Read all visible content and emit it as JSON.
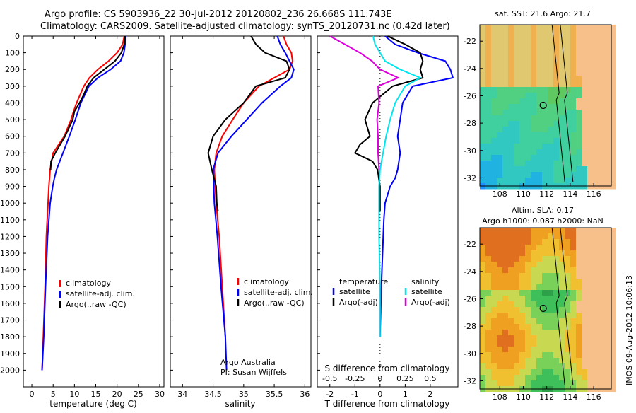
{
  "header": {
    "line1": "Argo profile: CS 5903936_22 30-Jul-2012 20120802_236 26.668S 111.743E",
    "line2": "Climatology: CARS2009. Satellite-adjusted climatology: synTS_20120731.nc (0.42d later)"
  },
  "colors": {
    "climatology": "#ff0000",
    "satellite": "#0000ff",
    "argo": "#000000",
    "sat_salinity": "#00e5ee",
    "argo_salinity": "#dd00dd"
  },
  "chart_data": [
    {
      "type": "line",
      "panel": "temperature",
      "xlabel": "temperature (deg C)",
      "ylabel": "",
      "xlim": [
        -2,
        31
      ],
      "ylim": [
        0,
        2100
      ],
      "y_reversed": true,
      "xticks": [
        0,
        5,
        10,
        15,
        20,
        25,
        30
      ],
      "yticks": [
        0,
        100,
        200,
        300,
        400,
        500,
        600,
        700,
        800,
        900,
        1000,
        1100,
        1200,
        1300,
        1400,
        1500,
        1600,
        1700,
        1800,
        1900,
        2000
      ],
      "legend": [
        "climatology",
        "satellite-adj. clim.",
        "Argo(..raw -QC)"
      ],
      "series": [
        {
          "name": "climatology",
          "color": "red",
          "depth": [
            0,
            50,
            100,
            150,
            200,
            250,
            300,
            400,
            450,
            500,
            600,
            700,
            800,
            900,
            1000,
            1200,
            1500,
            1800,
            2000
          ],
          "values": [
            21.7,
            21.3,
            20.0,
            18.0,
            15.5,
            13.5,
            12.2,
            10.5,
            9.8,
            9.2,
            7.6,
            5.0,
            4.3,
            4.0,
            3.8,
            3.4,
            3.1,
            2.7,
            2.4
          ]
        },
        {
          "name": "satellite-adj. clim.",
          "color": "blue",
          "depth": [
            0,
            50,
            100,
            150,
            200,
            250,
            300,
            400,
            500,
            600,
            700,
            800,
            850,
            900,
            1000,
            1200,
            1500,
            1800,
            2000
          ],
          "values": [
            22.0,
            21.9,
            21.6,
            20.8,
            18.5,
            15.5,
            13.4,
            11.5,
            10.2,
            8.8,
            7.3,
            5.8,
            5.3,
            4.9,
            4.3,
            3.7,
            3.2,
            2.8,
            2.4
          ]
        },
        {
          "name": "Argo(..raw -QC)",
          "color": "black",
          "depth": [
            0,
            50,
            100,
            150,
            200,
            250,
            300,
            350,
            400,
            450,
            500,
            600,
            700,
            750,
            800
          ],
          "values": [
            21.9,
            21.7,
            21.0,
            19.5,
            17.0,
            14.5,
            13.0,
            12.2,
            11.2,
            10.0,
            9.6,
            7.8,
            5.5,
            4.5,
            4.4
          ]
        }
      ]
    },
    {
      "type": "line",
      "panel": "salinity",
      "xlabel": "salinity",
      "xlim": [
        33.8,
        36.1
      ],
      "ylim": [
        0,
        2100
      ],
      "y_reversed": true,
      "xticks": [
        34,
        34.5,
        35,
        35.5,
        36
      ],
      "legend": [
        "climatology",
        "satellite-adj. clim.",
        "Argo(..raw -QC)"
      ],
      "annotations": [
        "Argo Australia",
        "PI: Susan Wijffels"
      ],
      "series": [
        {
          "name": "climatology",
          "color": "red",
          "depth": [
            0,
            50,
            100,
            150,
            200,
            250,
            300,
            400,
            500,
            600,
            700,
            800,
            1000,
            1200,
            1500,
            1800
          ],
          "values": [
            35.65,
            35.7,
            35.78,
            35.8,
            35.75,
            35.5,
            35.25,
            35.0,
            34.82,
            34.65,
            34.55,
            34.52,
            34.55,
            34.6,
            34.65,
            34.7
          ]
        },
        {
          "name": "satellite-adj. clim.",
          "color": "blue",
          "depth": [
            0,
            50,
            100,
            150,
            200,
            250,
            300,
            400,
            500,
            600,
            700,
            800,
            1000,
            1200,
            1500,
            1800,
            2000
          ],
          "values": [
            35.55,
            35.6,
            35.68,
            35.75,
            35.82,
            35.78,
            35.6,
            35.3,
            35.05,
            34.8,
            34.58,
            34.5,
            34.52,
            34.57,
            34.63,
            34.7,
            34.72
          ]
        },
        {
          "name": "Argo(..raw -QC)",
          "color": "black",
          "depth": [
            0,
            50,
            100,
            150,
            200,
            250,
            300,
            400,
            500,
            600,
            700,
            750,
            800,
            900,
            1000,
            1050
          ],
          "values": [
            35.12,
            35.2,
            35.35,
            35.7,
            35.75,
            35.68,
            35.2,
            35.0,
            34.7,
            34.5,
            34.42,
            34.45,
            34.48,
            34.55,
            34.56,
            34.58
          ]
        }
      ]
    },
    {
      "type": "line",
      "panel": "differences",
      "xlabel": "T difference from climatology",
      "xlabel_top": "S difference from climatology",
      "xlim_T": [
        -2.5,
        3.1
      ],
      "ylim": [
        0,
        2100
      ],
      "y_reversed": true,
      "xticks_T": [
        -2,
        -1,
        0,
        1,
        2
      ],
      "xticks_S": [
        "-0.5",
        "-0.25",
        "0",
        "0.25",
        "0.5"
      ],
      "legend_temperature_title": "temperature",
      "legend_salinity_title": "salinity",
      "legend": [
        "satellite",
        "Argo(-adj)",
        "satellite",
        "Argo(-adj)"
      ],
      "series": [
        {
          "name": "satellite",
          "group": "temperature",
          "color": "blue",
          "depth": [
            0,
            50,
            100,
            150,
            200,
            250,
            300,
            400,
            500,
            600,
            700,
            800,
            850,
            900,
            950,
            1000,
            1100,
            1300,
            1500,
            1800
          ],
          "values": [
            0.2,
            0.6,
            1.5,
            2.6,
            2.8,
            2.9,
            1.3,
            0.9,
            0.8,
            0.7,
            0.8,
            0.7,
            0.6,
            0.4,
            0.3,
            0.2,
            0.15,
            0.1,
            0.05,
            0.0
          ]
        },
        {
          "name": "Argo(-adj)",
          "group": "temperature",
          "color": "black",
          "depth": [
            0,
            50,
            100,
            150,
            200,
            250,
            300,
            400,
            500,
            600,
            650,
            700,
            750,
            800,
            900,
            1000,
            1050
          ],
          "values": [
            0.3,
            1.0,
            1.6,
            1.7,
            1.6,
            1.7,
            0.5,
            -0.3,
            -0.6,
            -0.4,
            -0.8,
            -1.0,
            -0.3,
            -0.1,
            0.0,
            0.0,
            0.0
          ]
        },
        {
          "name": "satellite",
          "group": "salinity",
          "color": "cyan",
          "depth": [
            0,
            50,
            100,
            150,
            200,
            250,
            300,
            400,
            500,
            600,
            700,
            800,
            900,
            1000,
            1200,
            1500,
            1800
          ],
          "values": [
            -0.07,
            -0.05,
            0.0,
            0.05,
            0.2,
            0.4,
            0.25,
            0.15,
            0.1,
            0.06,
            0.03,
            0.0,
            -0.01,
            -0.01,
            -0.01,
            0.0,
            0.0
          ]
        },
        {
          "name": "Argo(-adj)",
          "group": "salinity",
          "color": "magenta",
          "depth": [
            0,
            50,
            100,
            150,
            200,
            250,
            300,
            400,
            500,
            600,
            700,
            800
          ],
          "values": [
            -0.5,
            -0.35,
            -0.2,
            -0.08,
            0.0,
            0.18,
            -0.02,
            -0.01,
            -0.03,
            -0.02,
            -0.02,
            -0.01
          ]
        }
      ]
    },
    {
      "type": "heatmap",
      "panel": "SST map",
      "title": "sat. SST: 21.6  Argo: 21.7",
      "xticks": [
        108,
        110,
        112,
        114,
        116
      ],
      "yticks": [
        -22,
        -24,
        -26,
        -28,
        -30,
        -32
      ],
      "marker": {
        "lon": 111.7,
        "lat": -26.7
      }
    },
    {
      "type": "heatmap",
      "panel": "SLA map",
      "title_line1": "Altim. SLA: 0.17",
      "title_line2": "Argo h1000: 0.087  h2000: NaN",
      "xticks": [
        108,
        110,
        112,
        114,
        116
      ],
      "yticks": [
        -22,
        -24,
        -26,
        -28,
        -30,
        -32
      ],
      "marker": {
        "lon": 111.7,
        "lat": -26.7
      }
    }
  ],
  "footer": {
    "stamp": "IMOS 09-Aug-2012 10:06:13"
  }
}
